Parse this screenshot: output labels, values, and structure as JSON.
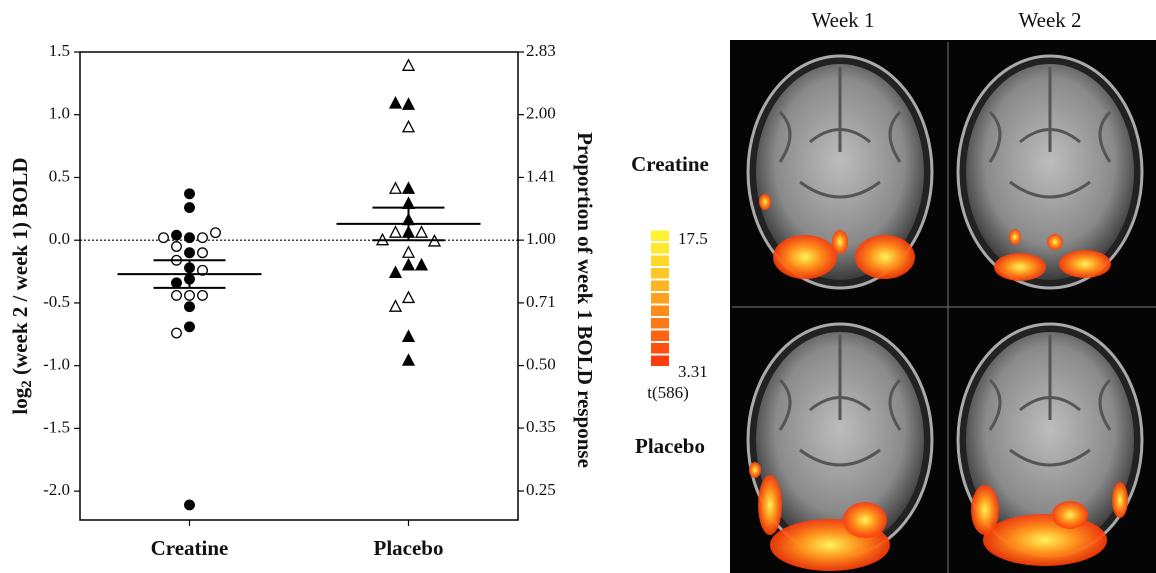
{
  "chart_data": {
    "type": "scatter",
    "categories": [
      "Creatine",
      "Placebo"
    ],
    "ylabel": {
      "base": "log",
      "sub": "2",
      "rest": " (week 2 / week 1) BOLD"
    },
    "y2label": "Proportion of week 1 BOLD response",
    "ylim": [
      -2.23,
      1.5
    ],
    "yticks": [
      1.5,
      {
        "value": 1,
        "label": "1.0"
      },
      0.5,
      {
        "value": 0,
        "label": "0.0"
      },
      -0.5,
      {
        "value": -1,
        "label": "-1.0"
      },
      -1.5,
      {
        "value": -2,
        "label": "-2.0"
      }
    ],
    "y2log": true,
    "y2lim": [
      0.213,
      2.828
    ],
    "y2ticks": [
      {
        "value": 2.828,
        "label": "2.83"
      },
      {
        "value": 2,
        "label": "2.00"
      },
      {
        "value": 1.414,
        "label": "1.41"
      },
      {
        "value": 1,
        "label": "1.00"
      },
      {
        "value": 0.707,
        "label": "0.71"
      },
      {
        "value": 0.5,
        "label": "0.50"
      },
      {
        "value": 0.354,
        "label": "0.35"
      },
      0.25
    ],
    "hline": 0,
    "series": [
      {
        "category": 0,
        "marker": "circle",
        "filled": true,
        "color": "#000000",
        "values": [
          0.37,
          0.26,
          0.02,
          0.04,
          -0.1,
          -0.22,
          -0.31,
          -0.34,
          -0.53,
          -0.69,
          -2.11
        ]
      },
      {
        "category": 0,
        "marker": "circle",
        "filled": false,
        "color": "#000000",
        "values": [
          0.02,
          0.02,
          0.06,
          -0.05,
          -0.1,
          -0.16,
          -0.24,
          -0.44,
          -0.44,
          -0.44,
          -0.74
        ]
      },
      {
        "category": 1,
        "marker": "triangle",
        "filled": true,
        "color": "#000000",
        "values": [
          1.08,
          1.09,
          0.41,
          0.29,
          0.16,
          0.06,
          -0.2,
          -0.26,
          -0.2,
          -0.77,
          -0.96
        ]
      },
      {
        "category": 1,
        "marker": "triangle",
        "filled": false,
        "color": "#000000",
        "values": [
          1.39,
          0.9,
          0.41,
          0.06,
          0.06,
          0.0,
          -0.01,
          -0.1,
          -0.46,
          -0.53
        ]
      }
    ],
    "means": {
      "values": [
        -0.27,
        0.13
      ],
      "errors": [
        0.11,
        0.13
      ],
      "color": "#000000"
    }
  },
  "panel": {
    "columns": [
      "Week 1",
      "Week 2"
    ],
    "rows": [
      "Creatine",
      "Placebo"
    ],
    "colorbar": {
      "max": 17.5,
      "min": 3.31,
      "label": "t(586)"
    }
  }
}
